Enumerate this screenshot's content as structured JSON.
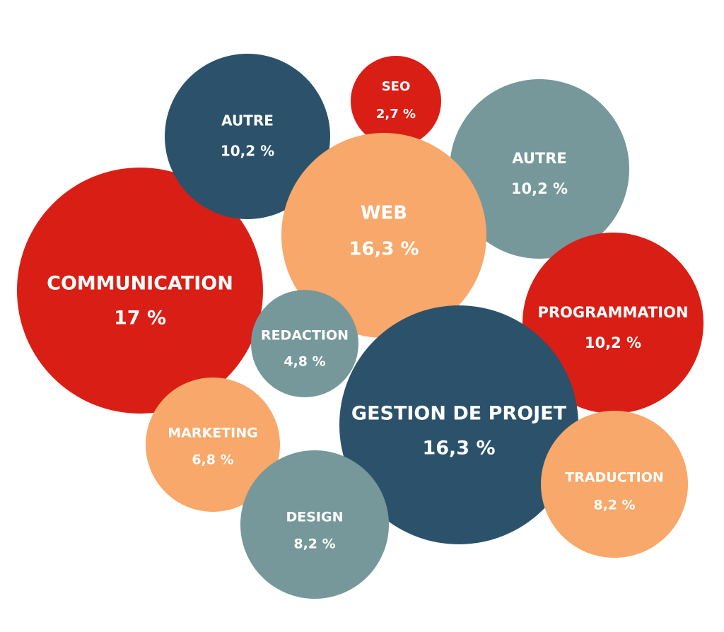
{
  "chart_data": {
    "type": "bubble",
    "colors": {
      "red": "#d91e15",
      "navy": "#2b526a",
      "orange": "#f7a86a",
      "teal": "#76989b"
    },
    "bubbles": [
      {
        "label": "COMMUNICATION",
        "value_label": "17 %",
        "value": 17.0,
        "color": "red"
      },
      {
        "label": "AUTRE",
        "value_label": "10,2 %",
        "value": 10.2,
        "color": "navy"
      },
      {
        "label": "SEO",
        "value_label": "2,7 %",
        "value": 2.7,
        "color": "red"
      },
      {
        "label": "AUTRE",
        "value_label": "10,2 %",
        "value": 10.2,
        "color": "teal"
      },
      {
        "label": "WEB",
        "value_label": "16,3 %",
        "value": 16.3,
        "color": "orange"
      },
      {
        "label": "PROGRAMMATION",
        "value_label": "10,2 %",
        "value": 10.2,
        "color": "red"
      },
      {
        "label": "REDACTION",
        "value_label": "4,8 %",
        "value": 4.8,
        "color": "teal"
      },
      {
        "label": "GESTION DE PROJET",
        "value_label": "16,3 %",
        "value": 16.3,
        "color": "navy"
      },
      {
        "label": "MARKETING",
        "value_label": "6,8 %",
        "value": 6.8,
        "color": "orange"
      },
      {
        "label": "DESIGN",
        "value_label": "8,2 %",
        "value": 8.2,
        "color": "teal"
      },
      {
        "label": "TRADUCTION",
        "value_label": "8,2 %",
        "value": 8.2,
        "color": "orange"
      }
    ]
  }
}
